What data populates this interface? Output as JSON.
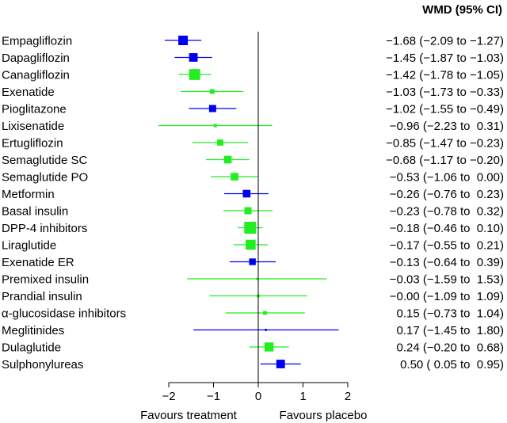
{
  "chart_data": {
    "type": "forest",
    "column_header": "WMD (95% CI)",
    "xlim": [
      -2,
      2
    ],
    "xticks": [
      -2,
      -1,
      0,
      1,
      2
    ],
    "xtick_labels": [
      "−2",
      "−1",
      "0",
      "1",
      "2"
    ],
    "reference_line": 0,
    "footer_left": "Favours treatment",
    "footer_right": "Favours placebo",
    "colors": {
      "blue": "#0000ee",
      "green": "#22ee22",
      "axis": "#000000"
    },
    "rows": [
      {
        "label": "Empagliflozin",
        "est": -1.68,
        "lo": -2.09,
        "hi": -1.27,
        "ci_text": "−1.68 (−2.09 to −1.27)",
        "color": "blue",
        "weight": 1.0
      },
      {
        "label": "Dapagliflozin",
        "est": -1.45,
        "lo": -1.87,
        "hi": -1.03,
        "ci_text": "−1.45 (−1.87 to −1.03)",
        "color": "blue",
        "weight": 0.9
      },
      {
        "label": "Canagliflozin",
        "est": -1.42,
        "lo": -1.78,
        "hi": -1.05,
        "ci_text": "−1.42 (−1.78 to −1.05)",
        "color": "green",
        "weight": 1.15
      },
      {
        "label": "Exenatide",
        "est": -1.03,
        "lo": -1.73,
        "hi": -0.33,
        "ci_text": "−1.03 (−1.73 to −0.33)",
        "color": "green",
        "weight": 0.5
      },
      {
        "label": "Pioglitazone",
        "est": -1.02,
        "lo": -1.55,
        "hi": -0.49,
        "ci_text": "−1.02 (−1.55 to −0.49)",
        "color": "blue",
        "weight": 0.75
      },
      {
        "label": "Lixisenatide",
        "est": -0.96,
        "lo": -2.23,
        "hi": 0.31,
        "ci_text": "−0.96 (−2.23 to  0.31)",
        "color": "green",
        "weight": 0.35
      },
      {
        "label": "Ertugliflozin",
        "est": -0.85,
        "lo": -1.47,
        "hi": -0.23,
        "ci_text": "−0.85 (−1.47 to −0.23)",
        "color": "green",
        "weight": 0.65
      },
      {
        "label": "Semaglutide SC",
        "est": -0.68,
        "lo": -1.17,
        "hi": -0.2,
        "ci_text": "−0.68 (−1.17 to −0.20)",
        "color": "green",
        "weight": 0.8
      },
      {
        "label": "Semaglutide PO",
        "est": -0.53,
        "lo": -1.06,
        "hi": 0.0,
        "ci_text": "−0.53 (−1.06 to  0.00)",
        "color": "green",
        "weight": 0.8
      },
      {
        "label": "Metformin",
        "est": -0.26,
        "lo": -0.76,
        "hi": 0.23,
        "ci_text": "−0.26 (−0.76 to  0.23)",
        "color": "blue",
        "weight": 0.8
      },
      {
        "label": "Basal insulin",
        "est": -0.23,
        "lo": -0.78,
        "hi": 0.32,
        "ci_text": "−0.23 (−0.78 to  0.32)",
        "color": "green",
        "weight": 0.75
      },
      {
        "label": "DPP-4 inhibitors",
        "est": -0.18,
        "lo": -0.46,
        "hi": 0.1,
        "ci_text": "−0.18 (−0.46 to  0.10)",
        "color": "green",
        "weight": 1.25
      },
      {
        "label": "Liraglutide",
        "est": -0.17,
        "lo": -0.55,
        "hi": 0.21,
        "ci_text": "−0.17 (−0.55 to  0.21)",
        "color": "green",
        "weight": 1.05
      },
      {
        "label": "Exenatide ER",
        "est": -0.13,
        "lo": -0.64,
        "hi": 0.39,
        "ci_text": "−0.13 (−0.64 to  0.39)",
        "color": "blue",
        "weight": 0.7
      },
      {
        "label": "Premixed insulin",
        "est": -0.03,
        "lo": -1.59,
        "hi": 1.53,
        "ci_text": "−0.03 (−1.59 to  1.53)",
        "color": "green",
        "weight": 0.22
      },
      {
        "label": "Prandial insulin",
        "est": -0.0,
        "lo": -1.09,
        "hi": 1.09,
        "ci_text": "−0.00 (−1.09 to  1.09)",
        "color": "green",
        "weight": 0.3
      },
      {
        "label": "α-glucosidase inhibitors",
        "est": 0.15,
        "lo": -0.73,
        "hi": 1.04,
        "ci_text": " 0.15 (−0.73 to  1.04)",
        "color": "green",
        "weight": 0.4
      },
      {
        "label": "Meglitinides",
        "est": 0.17,
        "lo": -1.45,
        "hi": 1.8,
        "ci_text": " 0.17 (−1.45 to  1.80)",
        "color": "blue",
        "weight": 0.22
      },
      {
        "label": "Dulaglutide",
        "est": 0.24,
        "lo": -0.2,
        "hi": 0.68,
        "ci_text": " 0.24 (−0.20 to  0.68)",
        "color": "green",
        "weight": 0.95
      },
      {
        "label": "Sulphonylureas",
        "est": 0.5,
        "lo": 0.05,
        "hi": 0.95,
        "ci_text": " 0.50 ( 0.05 to  0.95)",
        "color": "blue",
        "weight": 0.9
      }
    ]
  }
}
